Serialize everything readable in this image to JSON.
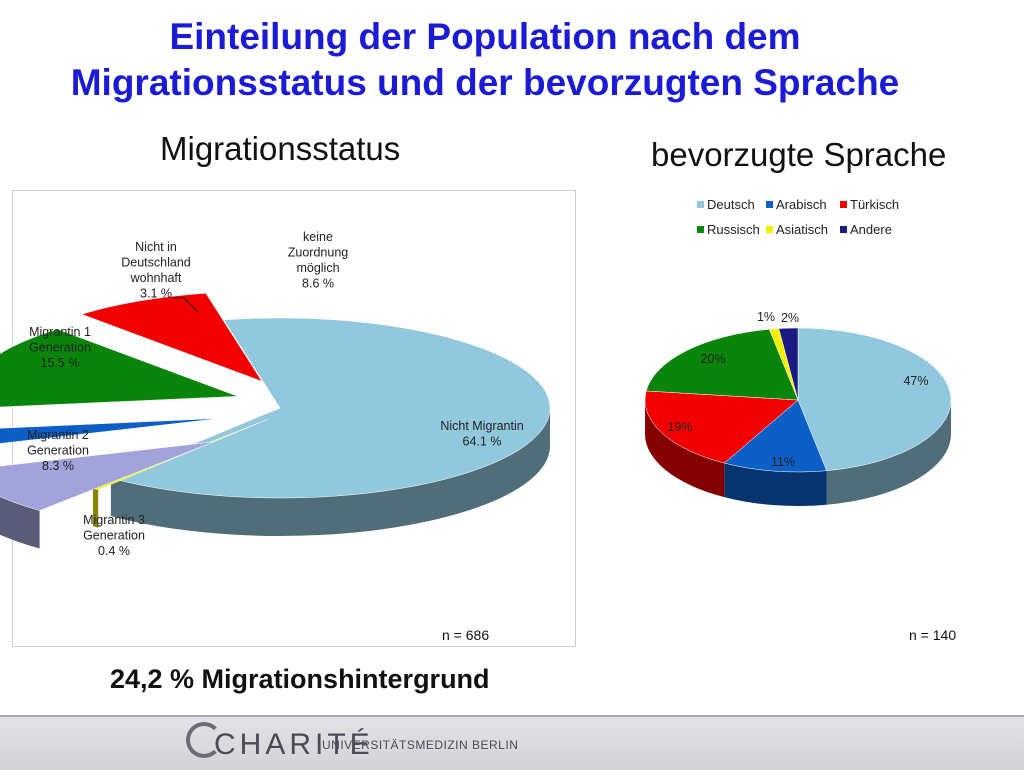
{
  "title_line1": "Einteilung der Population nach dem",
  "title_line2": "Migrationsstatus und der bevorzugten Sprache",
  "summary": "24,2 % Migrationshintergrund",
  "footer": {
    "brand": "CHARITÉ",
    "subtitle": "UNIVERSITÄTSMEDIZIN BERLIN",
    "colors": {
      "band": "#d8d8dc",
      "text": "#4a4a58"
    }
  },
  "chart_data": [
    {
      "type": "pie",
      "title": "Migrationsstatus",
      "n_label": "n = 686",
      "exploded": true,
      "slices": [
        {
          "label": "Nicht Migrantin",
          "value": 64.1,
          "display": "64.1 %",
          "color": "#92c8dd"
        },
        {
          "label": "Migrantin 3 Generation",
          "value": 0.4,
          "display": "0.4 %",
          "color": "#f2f200"
        },
        {
          "label": "keine Zuordnung möglich",
          "value": 8.6,
          "display": "8.6 %",
          "color": "#a3a3dc"
        },
        {
          "label": "Nicht in Deutschland wohnhaft",
          "value": 3.1,
          "display": "3.1 %",
          "color": "#0d5fc8"
        },
        {
          "label": "Migrantin 1 Generation",
          "value": 15.5,
          "display": "15.5 %",
          "color": "#0a840a"
        },
        {
          "label": "Migrantin 2 Generation",
          "value": 8.3,
          "display": "8.3 %",
          "color": "#f20000"
        }
      ],
      "label_lines": [
        [
          "Nicht Migrantin",
          "64.1 %"
        ],
        [
          "Migrantin 3",
          "Generation",
          "0.4 %"
        ],
        [
          "keine",
          "Zuordnung",
          "möglich",
          "8.6 %"
        ],
        [
          "Nicht in",
          "Deutschland",
          "wohnhaft",
          "3.1 %"
        ],
        [
          "Migrantin 1",
          "Generation",
          "15.5 %"
        ],
        [
          "Migrantin 2",
          "Generation",
          "8.3 %"
        ]
      ]
    },
    {
      "type": "pie",
      "title": "bevorzugte Sprache",
      "n_label": "n = 140",
      "legend": "top",
      "categories": [
        "Deutsch",
        "Arabisch",
        "Türkisch",
        "Russisch",
        "Asiatisch",
        "Andere"
      ],
      "values": [
        47,
        11,
        19,
        20,
        1,
        2
      ],
      "value_labels": [
        "47%",
        "11%",
        "19%",
        "20%",
        "1%",
        "2%"
      ],
      "colors": [
        "#92c8dd",
        "#0d5fc8",
        "#f20000",
        "#0a840a",
        "#f2f200",
        "#1a1a80"
      ]
    }
  ]
}
